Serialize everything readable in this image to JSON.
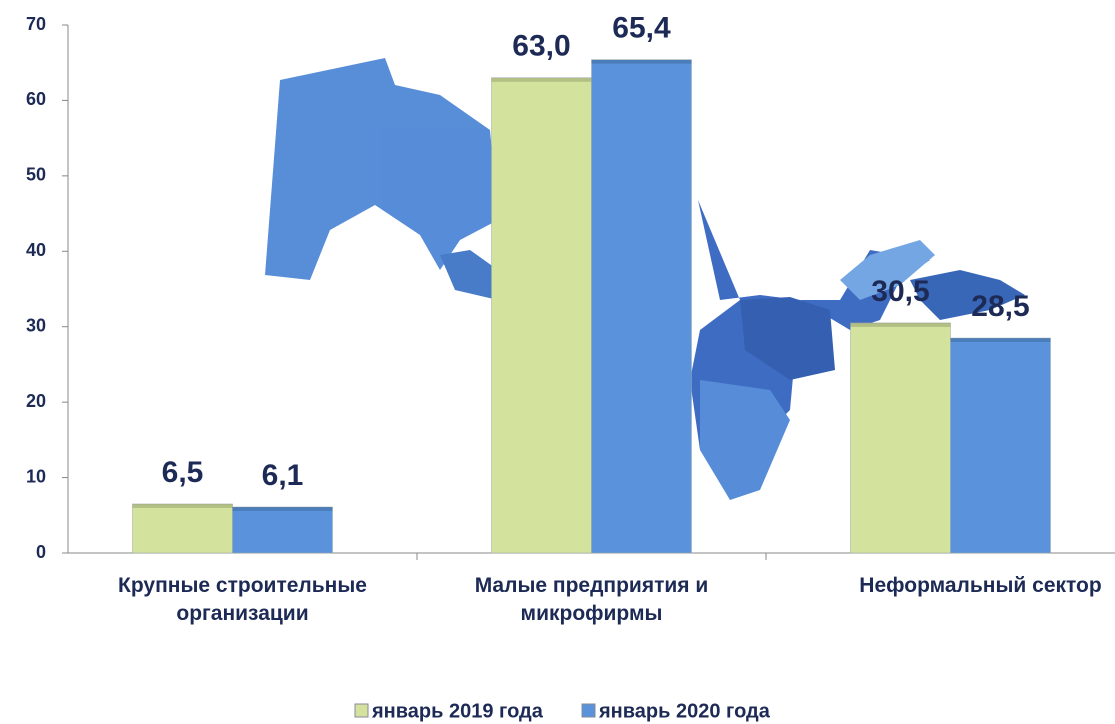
{
  "chart_data": {
    "type": "bar",
    "categories": [
      "Крупные строительные организации",
      "Малые предприятия и микрофирмы",
      "Неформальный сектор"
    ],
    "series": [
      {
        "name": "январь 2019 года",
        "color": "#d3e29c",
        "values": [
          6.5,
          63.0,
          30.5
        ],
        "value_labels": [
          "6,5",
          "63,0",
          "30,5"
        ]
      },
      {
        "name": "январь 2020 года",
        "color": "#5a93dc",
        "values": [
          6.1,
          65.4,
          28.5
        ],
        "value_labels": [
          "6,1",
          "65,4",
          "28,5"
        ]
      }
    ],
    "ylim": [
      0,
      70
    ],
    "yticks": [
      0,
      10,
      20,
      30,
      40,
      50,
      60,
      70
    ],
    "grid": false,
    "legend": "bottom"
  }
}
